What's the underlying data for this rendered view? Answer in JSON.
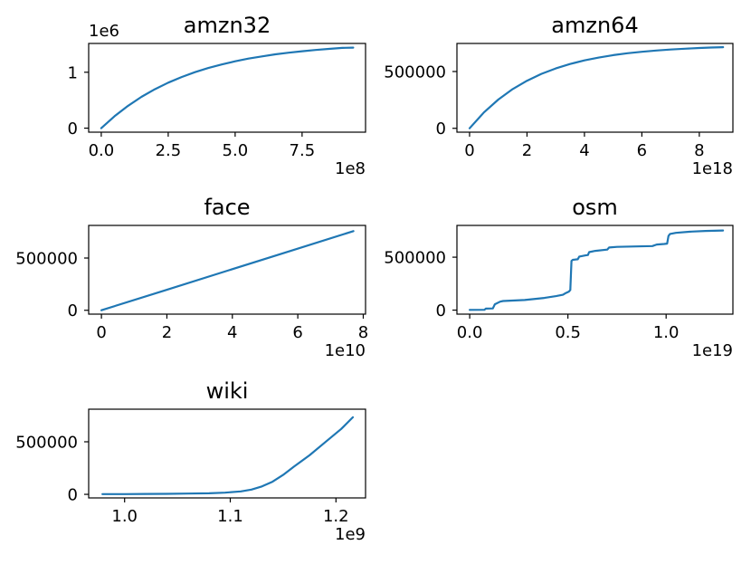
{
  "figure": {
    "background": "#ffffff",
    "axis_color": "#000000",
    "line_color": "#1f77b4",
    "grid": false,
    "legend": null,
    "layout": "3x2 grid, bottom-right cell empty"
  },
  "chart_data": [
    {
      "id": "amzn32",
      "type": "line",
      "title": "amzn32",
      "xlabel": "",
      "ylabel": "",
      "color": "#1f77b4",
      "x_offset_label": "1e8",
      "y_offset_label": "1e6",
      "xlim": [
        -47000000.0,
        987000000.0
      ],
      "ylim": [
        -72000,
        1515000
      ],
      "x_ticks": [
        {
          "value": 0,
          "label": "0.0"
        },
        {
          "value": 250000000.0,
          "label": "2.5"
        },
        {
          "value": 500000000.0,
          "label": "5.0"
        },
        {
          "value": 750000000.0,
          "label": "7.5"
        }
      ],
      "y_ticks": [
        {
          "value": 0,
          "label": "0"
        },
        {
          "value": 1000000,
          "label": "1"
        }
      ],
      "x": [
        0,
        50000000.0,
        100000000.0,
        150000000.0,
        200000000.0,
        250000000.0,
        300000000.0,
        350000000.0,
        400000000.0,
        450000000.0,
        500000000.0,
        550000000.0,
        600000000.0,
        650000000.0,
        700000000.0,
        750000000.0,
        800000000.0,
        850000000.0,
        900000000.0,
        941000000.0
      ],
      "y": [
        0,
        215000,
        400000,
        559000,
        695000,
        813000,
        914000,
        1001000,
        1076000,
        1140000,
        1196000,
        1244000,
        1284000,
        1320000,
        1350000,
        1376000,
        1399000,
        1418000,
        1435000,
        1441000
      ]
    },
    {
      "id": "amzn64",
      "type": "line",
      "title": "amzn64",
      "xlabel": "",
      "ylabel": "",
      "color": "#1f77b4",
      "x_offset_label": "1e18",
      "y_offset_label": null,
      "xlim": [
        -4.4e+17,
        9.17e+18
      ],
      "ylim": [
        -34000,
        747000
      ],
      "x_ticks": [
        {
          "value": 0,
          "label": "0"
        },
        {
          "value": 2e+18,
          "label": "2"
        },
        {
          "value": 4e+18,
          "label": "4"
        },
        {
          "value": 6e+18,
          "label": "6"
        },
        {
          "value": 8e+18,
          "label": "8"
        }
      ],
      "y_ticks": [
        {
          "value": 0,
          "label": "0"
        },
        {
          "value": 500000,
          "label": "500000"
        }
      ],
      "x": [
        0,
        5e+17,
        1e+18,
        1.5e+18,
        2e+18,
        2.5e+18,
        3e+18,
        3.5e+18,
        4e+18,
        4.5e+18,
        5e+18,
        5.5e+18,
        6e+18,
        6.5e+18,
        7e+18,
        7.5e+18,
        8e+18,
        8.4e+18,
        8.83e+18
      ],
      "y": [
        0,
        140000,
        253000,
        345000,
        419000,
        479000,
        527000,
        566000,
        598000,
        623000,
        644000,
        661000,
        674000,
        685000,
        694000,
        701000,
        707000,
        711000,
        714000
      ]
    },
    {
      "id": "face",
      "type": "line",
      "title": "face",
      "xlabel": "",
      "ylabel": "",
      "color": "#1f77b4",
      "x_offset_label": "1e10",
      "y_offset_label": null,
      "xlim": [
        -3900000000.0,
        80700000000.0
      ],
      "ylim": [
        -37000,
        812000
      ],
      "x_ticks": [
        {
          "value": 0,
          "label": "0"
        },
        {
          "value": 20000000000.0,
          "label": "2"
        },
        {
          "value": 40000000000.0,
          "label": "4"
        },
        {
          "value": 60000000000.0,
          "label": "6"
        },
        {
          "value": 80000000000.0,
          "label": "8"
        }
      ],
      "y_ticks": [
        {
          "value": 0,
          "label": "0"
        },
        {
          "value": 500000,
          "label": "500000"
        }
      ],
      "x": [
        0,
        19250000000.0,
        38500000000.0,
        57750000000.0,
        77000000000.0
      ],
      "y": [
        0,
        189250,
        378500,
        567750,
        757000
      ]
    },
    {
      "id": "osm",
      "type": "line",
      "title": "osm",
      "xlabel": "",
      "ylabel": "",
      "color": "#1f77b4",
      "x_offset_label": "1e19",
      "y_offset_label": null,
      "xlim": [
        -6.5e+17,
        1.34e+19
      ],
      "ylim": [
        -38000,
        800000
      ],
      "x_ticks": [
        {
          "value": 0,
          "label": "0.0"
        },
        {
          "value": 5e+18,
          "label": "0.5"
        },
        {
          "value": 1e+19,
          "label": "1.0"
        }
      ],
      "y_ticks": [
        {
          "value": 0,
          "label": "0"
        },
        {
          "value": 500000,
          "label": "500000"
        }
      ],
      "x": [
        0,
        7.5e+17,
        8.2e+17,
        1.18e+18,
        1.28e+18,
        1.55e+18,
        1.7e+18,
        2.8e+18,
        3.8e+18,
        4.4e+18,
        4.75e+18,
        4.9e+18,
        5.05e+18,
        5.12e+18,
        5.18e+18,
        5.25e+18,
        5.5e+18,
        5.58e+18,
        5.9e+18,
        6.02e+18,
        6.08e+18,
        6.4e+18,
        7e+18,
        7.1e+18,
        7.5e+18,
        8.5e+18,
        9.3e+18,
        9.52e+18,
        9.9e+18,
        1.005e+19,
        1.012e+19,
        1.02e+19,
        1.05e+19,
        1.13e+19,
        1.2e+19,
        1.29e+19
      ],
      "y": [
        2000,
        3000,
        14000,
        16000,
        55000,
        80000,
        86000,
        95000,
        115000,
        132000,
        145000,
        162000,
        175000,
        190000,
        465000,
        475000,
        480000,
        506000,
        517000,
        520000,
        548000,
        560000,
        572000,
        591000,
        597000,
        602000,
        605000,
        620000,
        625000,
        628000,
        700000,
        720000,
        730000,
        742000,
        748000,
        752000
      ]
    },
    {
      "id": "wiki",
      "type": "line",
      "title": "wiki",
      "xlabel": "",
      "ylabel": "",
      "color": "#1f77b4",
      "x_offset_label": "1e9",
      "y_offset_label": null,
      "xlim": [
        966000000.0,
        1228000000.0
      ],
      "ylim": [
        -34000,
        810000
      ],
      "x_ticks": [
        {
          "value": 1000000000.0,
          "label": "1.0"
        },
        {
          "value": 1100000000.0,
          "label": "1.1"
        },
        {
          "value": 1200000000.0,
          "label": "1.2"
        }
      ],
      "y_ticks": [
        {
          "value": 0,
          "label": "0"
        },
        {
          "value": 500000,
          "label": "500000"
        }
      ],
      "x": [
        979000000.0,
        1000000000.0,
        1020000000.0,
        1040000000.0,
        1060000000.0,
        1080000000.0,
        1095000000.0,
        1110000000.0,
        1120000000.0,
        1130000000.0,
        1140000000.0,
        1150000000.0,
        1160000000.0,
        1175000000.0,
        1190000000.0,
        1205000000.0,
        1216000000.0
      ],
      "y": [
        2000,
        2500,
        3500,
        5000,
        7000,
        10000,
        16000,
        28000,
        45000,
        75000,
        120000,
        185000,
        262000,
        372000,
        497000,
        622000,
        733000
      ]
    }
  ]
}
